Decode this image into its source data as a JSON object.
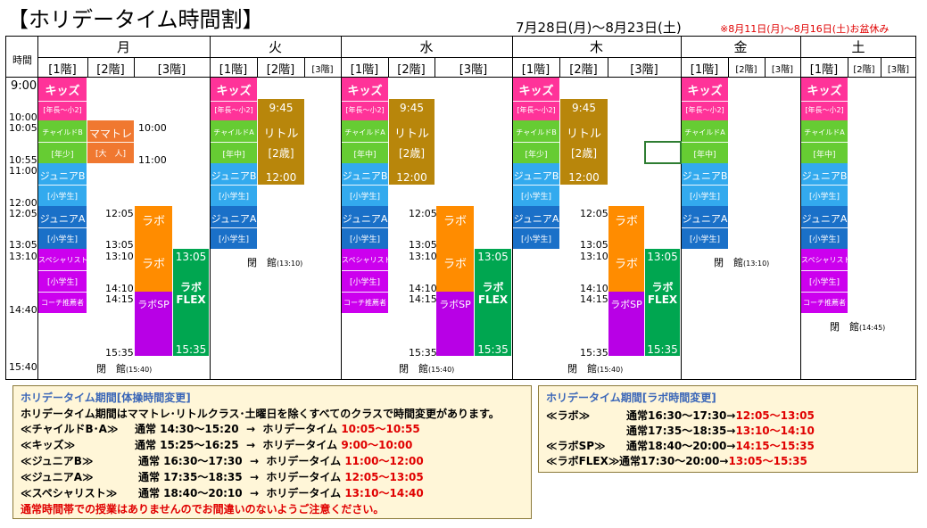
{
  "title": "【ホリデータイム時間割】",
  "period": "7月28日(月)～8月23日(土)",
  "note": "※8月11日(月)～8月16日(土)お盆休み",
  "time_header": "時間",
  "days": [
    "月",
    "火",
    "水",
    "木",
    "金",
    "土"
  ],
  "floors": [
    "[1階]",
    "[2階]",
    "[3階]"
  ],
  "times": [
    "9:00",
    "10:00",
    "10:05",
    "10:55",
    "11:00",
    "12:00",
    "12:05",
    "13:05",
    "13:10",
    "14:40",
    "15:40"
  ],
  "closed_label": "閉　館",
  "closed_times": {
    "c1540": "(15:40)",
    "c1310": "(13:10)",
    "c1445": "(14:45)"
  },
  "labels": {
    "kids": "キッズ",
    "kids_sub": "[年長～小2]",
    "childB": "チャイルドB",
    "nensho": "[年少]",
    "childA": "チャイルドA",
    "nenchu": "[年中]",
    "juniorB": "ジュニアB",
    "juniorA": "ジュニアA",
    "shogakusei": "[小学生]",
    "specialist": "スペシャリスト",
    "coach": "コーチ推薦者",
    "mamatore": "ママトレ",
    "otona": "[大　人]",
    "little": "リトル",
    "nisai": "[2歳]",
    "labo": "ラボ",
    "labosp": "ラボSP",
    "laboflex1": "ラボ",
    "laboflex2": "FLEX"
  },
  "block_times": {
    "t0945": "9:45",
    "t1200": "12:00",
    "t1000": "10:00",
    "t1100": "11:00",
    "t1205": "12:05",
    "t1305": "13:05",
    "t1310": "13:10",
    "t1410": "14:10",
    "t1415": "14:15",
    "t1535": "15:35"
  },
  "gym_box": {
    "heading": "ホリデータイム期間[体操時間変更]",
    "intro": "ホリデータイム期間はママトレ･リトルクラス･土曜日を除くすべてのクラスで時間変更があります。",
    "rows": [
      {
        "name": "≪チャイルドB･A≫",
        "normal": "通常 14:30～15:20",
        "arrow": "→",
        "holiday": "ホリデータイム",
        "time": "10:05～10:55"
      },
      {
        "name": "≪キッズ≫",
        "normal": "通常 15:25～16:25",
        "arrow": "→",
        "holiday": "ホリデータイム",
        "time": "9:00～10:00"
      },
      {
        "name": "≪ジュニアB≫",
        "normal": "通常 16:30～17:30",
        "arrow": "→",
        "holiday": "ホリデータイム",
        "time": "11:00～12:00"
      },
      {
        "name": "≪ジュニアA≫",
        "normal": "通常 17:35～18:35",
        "arrow": "→",
        "holiday": "ホリデータイム",
        "time": "12:05～13:05"
      },
      {
        "name": "≪スペシャリスト≫",
        "normal": "通常 18:40～20:10",
        "arrow": "→",
        "holiday": "ホリデータイム",
        "time": "13:10～14:40"
      }
    ],
    "footer": "通常時間帯での授業はありませんのでお間違いのないようご注意ください。"
  },
  "labo_box": {
    "heading": "ホリデータイム期間[ラボ時間変更]",
    "rows": [
      {
        "name": "≪ラボ≫",
        "normal": "通常16:30～17:30→",
        "time": "12:05～13:05"
      },
      {
        "name": "",
        "normal": "通常17:35～18:35→",
        "time": "13:10～14:10"
      },
      {
        "name": "≪ラボSP≫",
        "normal": "通常18:40～20:00→",
        "time": "14:15～15:35"
      },
      {
        "name": "≪ラボFLEX≫",
        "normal": "通常17:30～20:00→",
        "time": "13:05～15:35"
      }
    ]
  },
  "colors": {
    "kids": "#ff3399",
    "child": "#66cc33",
    "junior_b": "#33aaee",
    "junior_a": "#1a70c8",
    "specialist": "#cc00ee",
    "mama": "#f07830",
    "little": "#b8860b",
    "labo": "#ff8c00",
    "labosp": "#b800e6",
    "flex": "#00a650"
  }
}
